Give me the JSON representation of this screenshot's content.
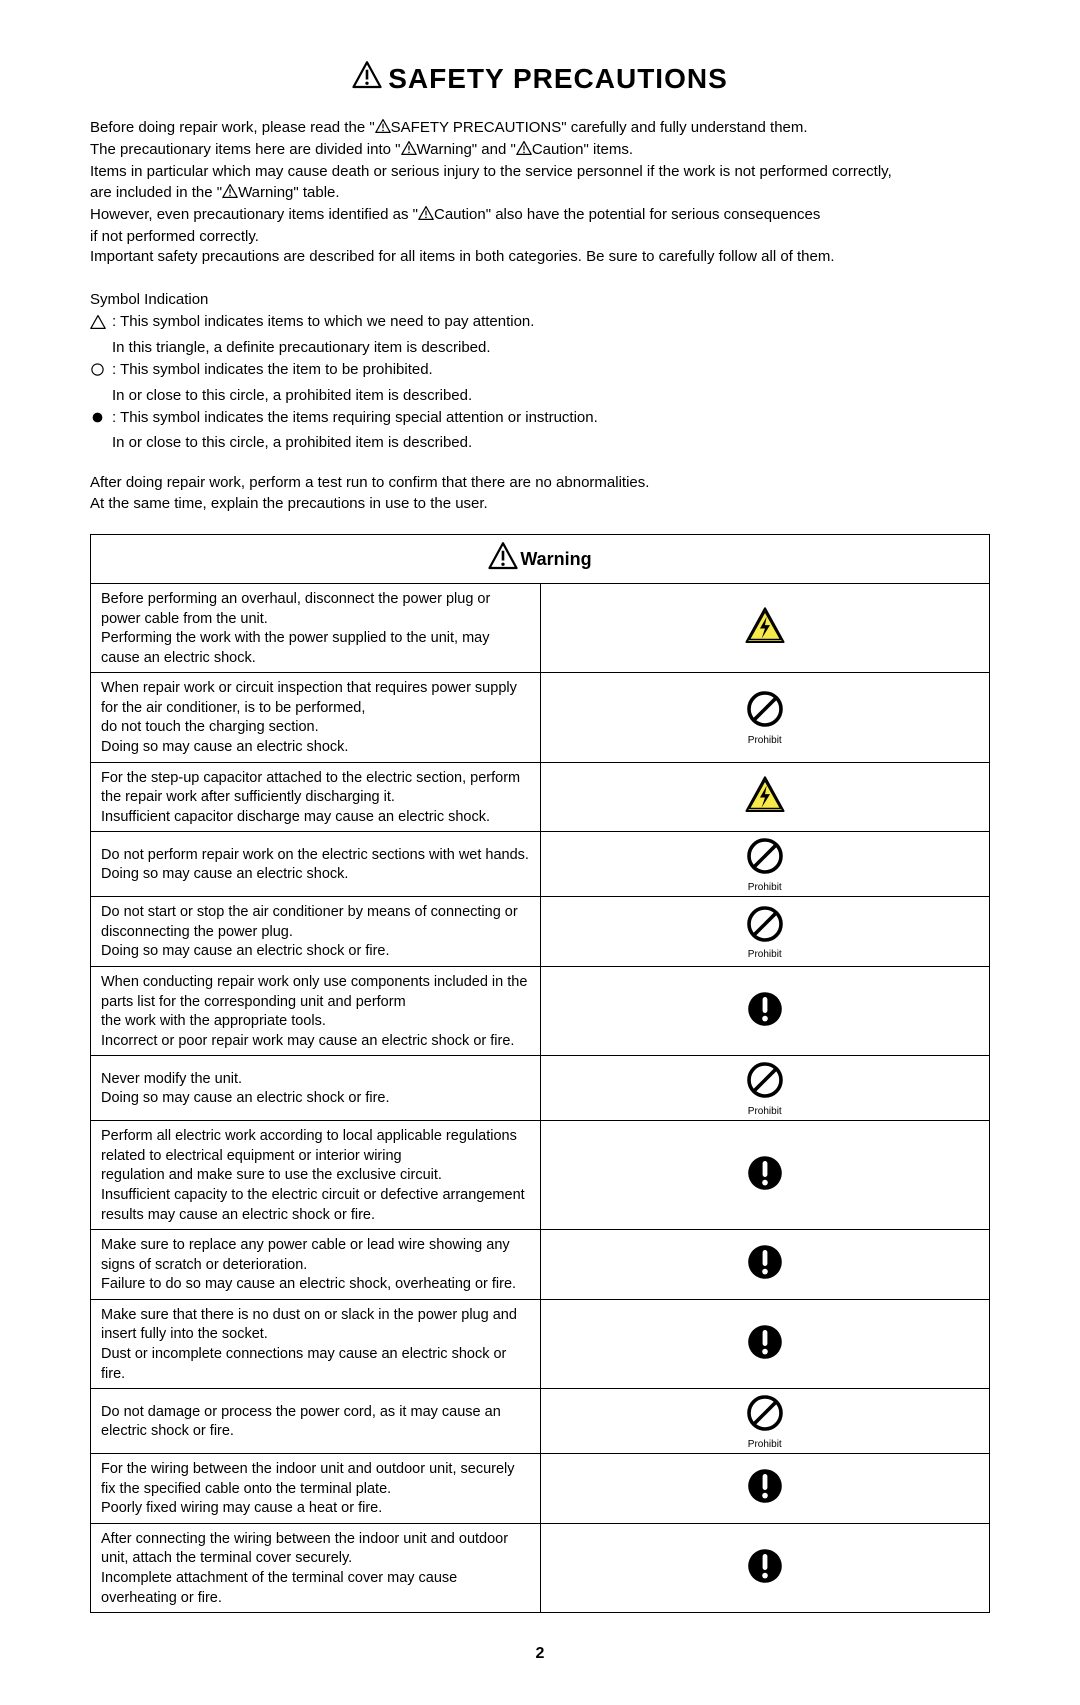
{
  "title": "SAFETY PRECAUTIONS",
  "intro": {
    "l1a": "Before doing repair work, please read the \"",
    "l1b": "SAFETY PRECAUTIONS\" carefully and fully understand them.",
    "l2a": "The precautionary items here are divided into \"",
    "l2b": "Warning\" and \"",
    "l2c": "Caution\" items.",
    "l3": "Items in particular which may cause death or serious injury to the service personnel if the work is not performed correctly,",
    "l4a": "are included in the \"",
    "l4b": "Warning\" table.",
    "l5a": "However, even precautionary items identified as \"",
    "l5b": "Caution\" also have the potential for serious consequences",
    "l6": "if not performed correctly.",
    "l7": "Important safety precautions are described for all items in both categories. Be sure to carefully follow all of them."
  },
  "symbolHeading": "Symbol Indication",
  "symbols": [
    {
      "type": "triangle",
      "line1": ": This symbol indicates items to which we need to pay attention.",
      "line2": "In this triangle, a definite precautionary item is described."
    },
    {
      "type": "prohibit",
      "line1": ": This symbol indicates the item to be prohibited.",
      "line2": "In or close to this circle, a prohibited item is described."
    },
    {
      "type": "mandatory",
      "line1": ": This symbol indicates the items requiring special attention or instruction.",
      "line2": "In or close to this circle, a prohibited item is described."
    }
  ],
  "afterNote": {
    "l1": "After doing repair work, perform a test run to confirm that there are no abnormalities.",
    "l2": "At the same time, explain the precautions in use to the user."
  },
  "warningHeader": "Warning",
  "prohibitLabel": "Prohibit",
  "rows": [
    {
      "text": "Before performing an overhaul, disconnect the power plug or power cable from the unit.\nPerforming the work with the power supplied to the unit, may cause an electric shock.",
      "icon": "shock"
    },
    {
      "text": "When repair work or circuit inspection that requires power supply for the air conditioner, is to be performed,\ndo not touch the charging section.\nDoing so may cause an electric shock.",
      "icon": "prohibit"
    },
    {
      "text": "For the step-up capacitor attached to the electric section, perform the repair work after sufficiently discharging it.\nInsufficient capacitor discharge may cause an electric shock.",
      "icon": "shock"
    },
    {
      "text": "Do not perform repair work on the electric sections with wet hands.\nDoing so may cause an electric shock.",
      "icon": "prohibit"
    },
    {
      "text": "Do not start or stop the air conditioner by means of connecting or disconnecting the power plug.\nDoing so may cause an electric shock or fire.",
      "icon": "prohibit"
    },
    {
      "text": "When conducting repair work only use components included in the parts list for the corresponding unit and perform\nthe work with the appropriate tools.\nIncorrect or poor repair work may cause an electric shock or fire.",
      "icon": "mandatory"
    },
    {
      "text": "Never modify the unit.\nDoing so may cause an electric shock or fire.",
      "icon": "prohibit"
    },
    {
      "text": "Perform all electric work according to local applicable regulations related to electrical equipment or interior wiring\nregulation and make sure to use the exclusive circuit.\nInsufficient capacity to the electric circuit or defective arrangement results may cause an electric shock or fire.",
      "icon": "mandatory"
    },
    {
      "text": "Make sure to replace any power cable or lead wire showing any signs of scratch or deterioration.\nFailure to do so may cause an electric shock, overheating or fire.",
      "icon": "mandatory"
    },
    {
      "text": "Make sure that there is no dust on or slack in the power plug and insert fully into the socket.\nDust or incomplete connections may cause an electric shock or fire.",
      "icon": "mandatory"
    },
    {
      "text": "Do not damage or process the power cord, as it may cause an electric shock or fire.",
      "icon": "prohibit"
    },
    {
      "text": "For the wiring between the indoor unit and outdoor unit, securely fix the specified cable onto the terminal plate.\nPoorly fixed wiring may cause a heat or fire.",
      "icon": "mandatory"
    },
    {
      "text": "After connecting the wiring between the indoor unit and outdoor unit, attach the terminal cover securely.\nIncomplete attachment of the terminal cover may cause overheating or fire.",
      "icon": "mandatory"
    }
  ],
  "pageNumber": "2",
  "colors": {
    "stroke": "#000000",
    "highlight": "#f7e94a"
  }
}
